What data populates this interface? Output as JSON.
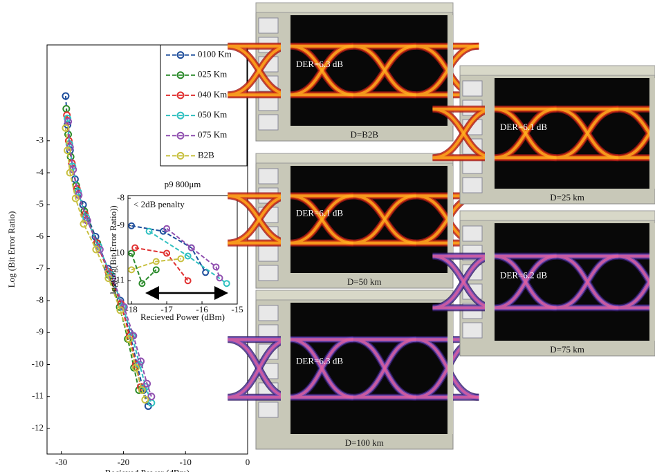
{
  "chart_data": [
    {
      "type": "line",
      "xlabel": "Recieved Power (dBm)",
      "ylabel": "Log (Bit Error Ratio)",
      "xlim": [
        -32.3,
        0
      ],
      "xticks": [
        -30,
        -20,
        -10,
        0
      ],
      "ylim": [
        -12.8,
        0
      ],
      "yticks": [
        -3,
        -4,
        -5,
        -6,
        -7,
        -8,
        -9,
        -10,
        -11,
        -12
      ],
      "legend": "upper right",
      "series": [
        {
          "name": "0100 Km",
          "color": "#1f4e9c",
          "x": [
            -29.3,
            -29.0,
            -28.6,
            -27.8,
            -26.5,
            -24.5,
            -22.5,
            -20.5,
            -19.0,
            -17.8,
            -16.8,
            -16.0
          ],
          "values": [
            -1.6,
            -2.5,
            -3.3,
            -4.2,
            -5.0,
            -6.0,
            -7.0,
            -8.0,
            -9.0,
            -10.0,
            -10.8,
            -11.3
          ]
        },
        {
          "name": "025 Km",
          "color": "#2a8a2a",
          "x": [
            -29.2,
            -28.9,
            -28.5,
            -27.6,
            -26.3,
            -24.2,
            -22.3,
            -20.6,
            -19.3,
            -18.3,
            -17.5
          ],
          "values": [
            -2.0,
            -2.8,
            -3.5,
            -4.4,
            -5.2,
            -6.2,
            -7.2,
            -8.2,
            -9.2,
            -10.1,
            -10.8
          ]
        },
        {
          "name": "040 Km",
          "color": "#e03030",
          "x": [
            -29.1,
            -28.8,
            -28.3,
            -27.5,
            -26.2,
            -24.3,
            -22.4,
            -20.4,
            -19.0,
            -18.0,
            -17.2
          ],
          "values": [
            -2.2,
            -3.0,
            -3.7,
            -4.5,
            -5.3,
            -6.2,
            -7.1,
            -8.1,
            -9.1,
            -10.0,
            -10.7
          ]
        },
        {
          "name": "050 Km",
          "color": "#30c0c0",
          "x": [
            -29.0,
            -28.7,
            -28.2,
            -27.3,
            -26.0,
            -24.0,
            -22.0,
            -20.1,
            -18.6,
            -17.4,
            -16.4,
            -15.5
          ],
          "values": [
            -2.3,
            -3.1,
            -3.8,
            -4.6,
            -5.4,
            -6.3,
            -7.2,
            -8.2,
            -9.1,
            -10.0,
            -10.7,
            -11.2
          ]
        },
        {
          "name": "075 Km",
          "color": "#9050b0",
          "x": [
            -28.9,
            -28.6,
            -28.1,
            -27.2,
            -25.8,
            -23.8,
            -21.8,
            -19.9,
            -18.4,
            -17.2,
            -16.2,
            -15.5
          ],
          "values": [
            -2.4,
            -3.2,
            -3.9,
            -4.7,
            -5.5,
            -6.4,
            -7.3,
            -8.2,
            -9.1,
            -9.9,
            -10.6,
            -11.0
          ]
        },
        {
          "name": "B2B",
          "color": "#c8c040",
          "x": [
            -29.3,
            -29.0,
            -28.6,
            -27.7,
            -26.4,
            -24.4,
            -22.4,
            -20.5,
            -19.1,
            -18.0,
            -17.0,
            -16.5
          ],
          "values": [
            -2.6,
            -3.3,
            -4.0,
            -4.8,
            -5.6,
            -6.4,
            -7.3,
            -8.3,
            -9.2,
            -10.1,
            -10.8,
            -11.1
          ]
        }
      ]
    },
    {
      "type": "line",
      "title": "p9 800μm",
      "annotation": "< 2dB penalty",
      "xlabel": "Recieved Power (dBm)",
      "ylabel": "log(log(Bit Error Ratio))",
      "xlim": [
        -18.1,
        -15
      ],
      "xticks": [
        -18,
        -17,
        -16,
        -15
      ],
      "ylim": [
        -11.85,
        -7.9
      ],
      "yticks": [
        -8,
        -9,
        -10,
        -11
      ],
      "series": [
        {
          "name": "0100 Km",
          "color": "#1f4e9c",
          "x": [
            -18.0,
            -17.1,
            -16.3,
            -15.9
          ],
          "values": [
            -9.0,
            -9.2,
            -9.8,
            -10.7
          ]
        },
        {
          "name": "025 Km",
          "color": "#2a8a2a",
          "x": [
            -18.0,
            -17.7,
            -17.3
          ],
          "values": [
            -10.0,
            -11.1,
            -10.6
          ]
        },
        {
          "name": "040 Km",
          "color": "#e03030",
          "x": [
            -17.9,
            -17.0,
            -16.4
          ],
          "values": [
            -9.8,
            -10.0,
            -11.0
          ]
        },
        {
          "name": "050 Km",
          "color": "#30c0c0",
          "x": [
            -17.5,
            -16.4,
            -15.3
          ],
          "values": [
            -9.2,
            -10.1,
            -11.1
          ]
        },
        {
          "name": "075 Km",
          "color": "#9050b0",
          "x": [
            -17.0,
            -16.3,
            -15.6,
            -15.5
          ],
          "values": [
            -9.1,
            -9.8,
            -10.5,
            -10.9
          ]
        },
        {
          "name": "B2B",
          "color": "#c8c040",
          "x": [
            -18.0,
            -17.3,
            -16.6
          ],
          "values": [
            -10.6,
            -10.3,
            -10.2
          ]
        }
      ]
    }
  ],
  "eye_panels": [
    {
      "der": "DER=6.3 dB",
      "distance": "D=B2B"
    },
    {
      "der": "DER=6.1 dB",
      "distance": "D=50 km"
    },
    {
      "der": "DER=6.3 dB",
      "distance": "D=100 km"
    },
    {
      "der": "DER=6.1 dB",
      "distance": "D=25 km"
    },
    {
      "der": "DER=6.2 dB",
      "distance": "D=75 km"
    }
  ]
}
